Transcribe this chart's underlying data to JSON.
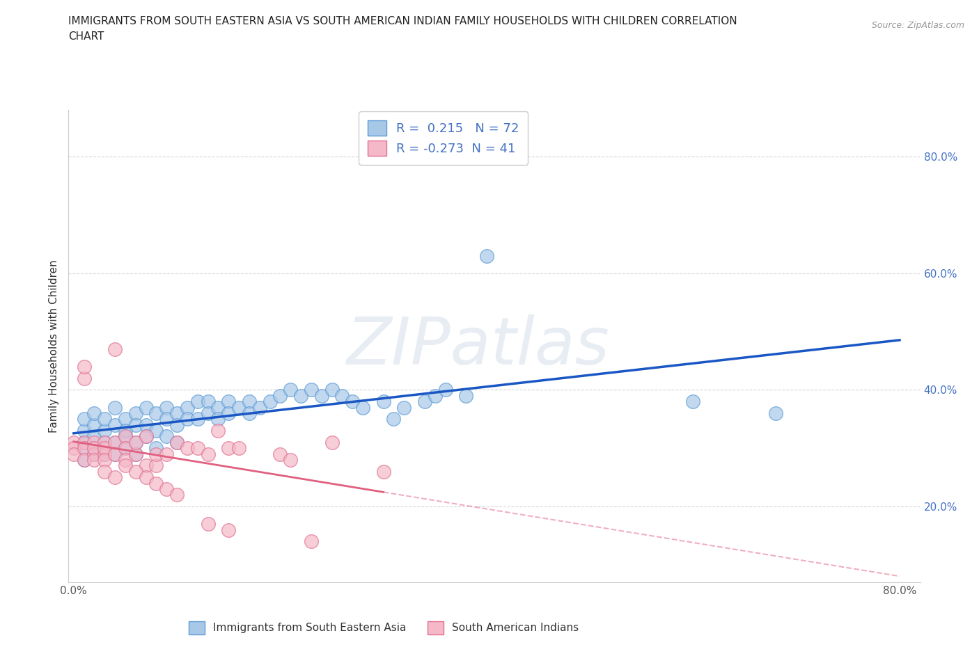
{
  "title_line1": "IMMIGRANTS FROM SOUTH EASTERN ASIA VS SOUTH AMERICAN INDIAN FAMILY HOUSEHOLDS WITH CHILDREN CORRELATION",
  "title_line2": "CHART",
  "source_text": "Source: ZipAtlas.com",
  "ylabel": "Family Households with Children",
  "watermark": "ZIPatlas",
  "xlim": [
    -0.005,
    0.82
  ],
  "ylim": [
    0.07,
    0.88
  ],
  "xtick_vals": [
    0.0,
    0.2,
    0.4,
    0.6,
    0.8
  ],
  "xtick_labels": [
    "0.0%",
    "",
    "",
    "",
    "80.0%"
  ],
  "ytick_vals": [
    0.2,
    0.4,
    0.6,
    0.8
  ],
  "ytick_labels": [
    "20.0%",
    "40.0%",
    "60.0%",
    "80.0%"
  ],
  "blue_color": "#a8c8e8",
  "blue_edge": "#5b9bd5",
  "pink_color": "#f4b8c8",
  "pink_edge": "#e07090",
  "trend_blue": "#1a56c4",
  "trend_pink": "#e06080",
  "R_blue": 0.215,
  "N_blue": 72,
  "R_pink": -0.273,
  "N_pink": 41,
  "legend_label_blue": "Immigrants from South Eastern Asia",
  "legend_label_pink": "South American Indians",
  "blue_scatter_x": [
    0.01,
    0.01,
    0.01,
    0.01,
    0.01,
    0.02,
    0.02,
    0.02,
    0.02,
    0.02,
    0.03,
    0.03,
    0.03,
    0.03,
    0.04,
    0.04,
    0.04,
    0.04,
    0.05,
    0.05,
    0.05,
    0.05,
    0.06,
    0.06,
    0.06,
    0.06,
    0.07,
    0.07,
    0.07,
    0.08,
    0.08,
    0.08,
    0.09,
    0.09,
    0.09,
    0.1,
    0.1,
    0.1,
    0.11,
    0.11,
    0.12,
    0.12,
    0.13,
    0.13,
    0.14,
    0.14,
    0.15,
    0.15,
    0.16,
    0.17,
    0.17,
    0.18,
    0.19,
    0.2,
    0.21,
    0.22,
    0.23,
    0.24,
    0.25,
    0.26,
    0.27,
    0.28,
    0.3,
    0.31,
    0.32,
    0.34,
    0.35,
    0.36,
    0.38,
    0.4,
    0.6,
    0.68
  ],
  "blue_scatter_y": [
    0.31,
    0.33,
    0.3,
    0.28,
    0.35,
    0.32,
    0.29,
    0.34,
    0.3,
    0.36,
    0.33,
    0.31,
    0.29,
    0.35,
    0.34,
    0.31,
    0.29,
    0.37,
    0.35,
    0.32,
    0.3,
    0.33,
    0.36,
    0.34,
    0.31,
    0.29,
    0.37,
    0.34,
    0.32,
    0.36,
    0.33,
    0.3,
    0.37,
    0.35,
    0.32,
    0.36,
    0.34,
    0.31,
    0.37,
    0.35,
    0.38,
    0.35,
    0.38,
    0.36,
    0.37,
    0.35,
    0.38,
    0.36,
    0.37,
    0.38,
    0.36,
    0.37,
    0.38,
    0.39,
    0.4,
    0.39,
    0.4,
    0.39,
    0.4,
    0.39,
    0.38,
    0.37,
    0.38,
    0.35,
    0.37,
    0.38,
    0.39,
    0.4,
    0.39,
    0.63,
    0.38,
    0.36
  ],
  "pink_scatter_x": [
    0.0,
    0.0,
    0.0,
    0.01,
    0.01,
    0.01,
    0.01,
    0.01,
    0.02,
    0.02,
    0.02,
    0.02,
    0.03,
    0.03,
    0.03,
    0.03,
    0.04,
    0.04,
    0.04,
    0.05,
    0.05,
    0.05,
    0.06,
    0.06,
    0.07,
    0.07,
    0.08,
    0.08,
    0.09,
    0.1,
    0.11,
    0.12,
    0.13,
    0.14,
    0.15,
    0.16,
    0.2,
    0.21,
    0.23,
    0.25,
    0.3
  ],
  "pink_scatter_y": [
    0.31,
    0.3,
    0.29,
    0.42,
    0.44,
    0.31,
    0.3,
    0.28,
    0.31,
    0.29,
    0.3,
    0.28,
    0.31,
    0.29,
    0.3,
    0.28,
    0.31,
    0.29,
    0.47,
    0.32,
    0.3,
    0.28,
    0.29,
    0.31,
    0.27,
    0.32,
    0.27,
    0.29,
    0.29,
    0.31,
    0.3,
    0.3,
    0.29,
    0.33,
    0.3,
    0.3,
    0.29,
    0.28,
    0.14,
    0.31,
    0.26
  ],
  "pink_extra_x": [
    0.03,
    0.04,
    0.05,
    0.06,
    0.07,
    0.08,
    0.09,
    0.1,
    0.13,
    0.15
  ],
  "pink_extra_y": [
    0.26,
    0.25,
    0.27,
    0.26,
    0.25,
    0.24,
    0.23,
    0.22,
    0.17,
    0.16
  ]
}
